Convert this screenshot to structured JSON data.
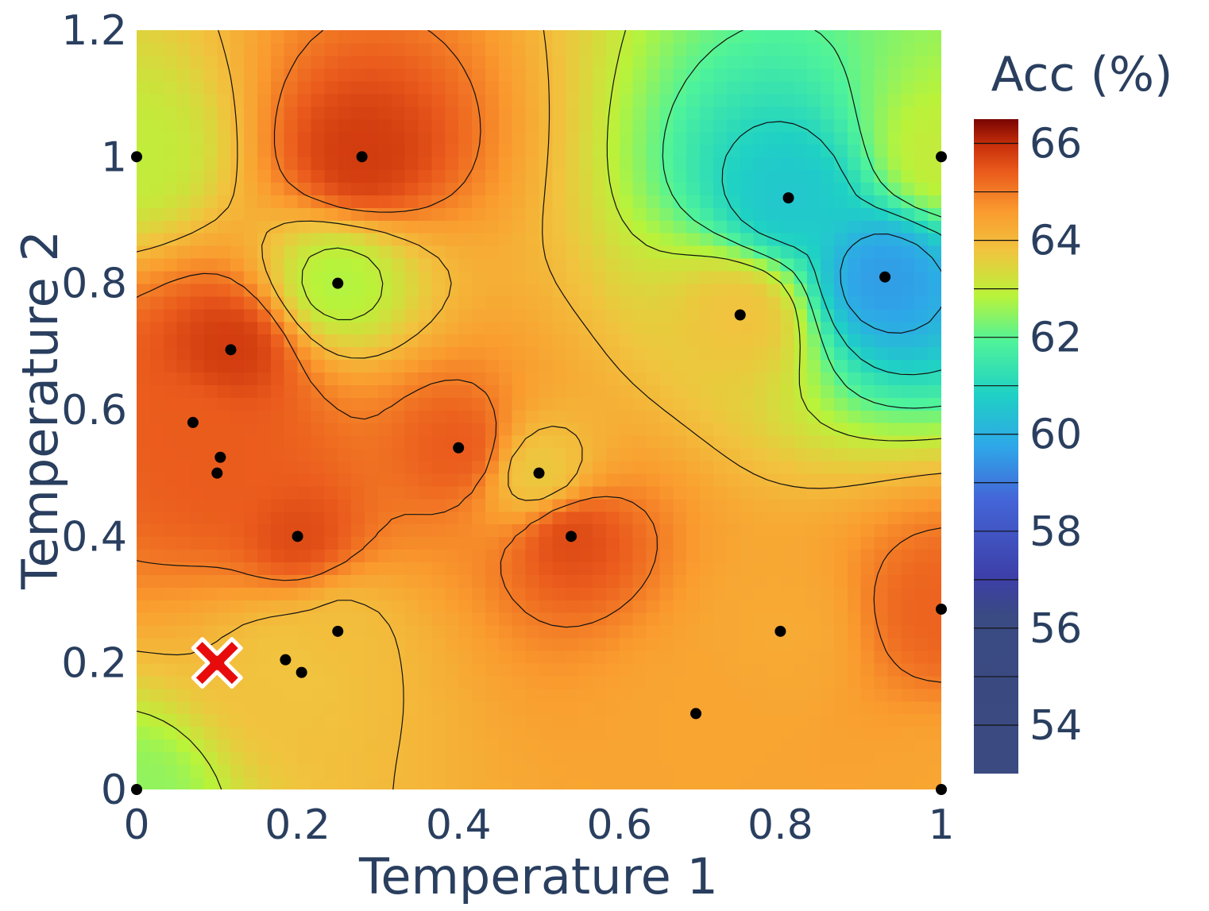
{
  "chart_data": {
    "type": "heatmap",
    "title": "",
    "xlabel": "Temperature 1",
    "ylabel": "Temperature 2",
    "xlim": [
      0,
      1
    ],
    "ylim": [
      0,
      1.2
    ],
    "x_ticks": [
      "0",
      "0.2",
      "0.4",
      "0.6",
      "0.8",
      "1"
    ],
    "x_tick_values": [
      0,
      0.2,
      0.4,
      0.6,
      0.8,
      1
    ],
    "y_ticks": [
      "0",
      "0.2",
      "0.4",
      "0.6",
      "0.8",
      "1",
      "1.2"
    ],
    "y_tick_values": [
      0,
      0.2,
      0.4,
      0.6,
      0.8,
      1,
      1.2
    ],
    "grid": false,
    "colorbar": {
      "title": "Acc (%)",
      "range": [
        53,
        66.5
      ],
      "ticks": [
        "54",
        "56",
        "58",
        "60",
        "62",
        "64",
        "66"
      ],
      "tick_values": [
        54,
        56,
        58,
        60,
        62,
        64,
        66
      ],
      "contour_levels": [
        54,
        55,
        56,
        57,
        58,
        59,
        60,
        61,
        62,
        63,
        64,
        65,
        66
      ],
      "colorscale": [
        [
          0.0,
          "#3b4a80"
        ],
        [
          0.24,
          "#3a4a82"
        ],
        [
          0.3,
          "#3d3fa8"
        ],
        [
          0.42,
          "#4466d8"
        ],
        [
          0.5,
          "#2ea7e8"
        ],
        [
          0.58,
          "#1fd1c4"
        ],
        [
          0.66,
          "#4ff39a"
        ],
        [
          0.73,
          "#b9f33a"
        ],
        [
          0.8,
          "#f1c33e"
        ],
        [
          0.86,
          "#fa9a2e"
        ],
        [
          0.92,
          "#ea5a1c"
        ],
        [
          0.96,
          "#c8300a"
        ],
        [
          1.0,
          "#7a0403"
        ]
      ]
    },
    "points": [
      {
        "x": 0.0,
        "y": 1.0,
        "acc": 63.0
      },
      {
        "x": 0.28,
        "y": 1.0,
        "acc": 65.8
      },
      {
        "x": 0.81,
        "y": 0.935,
        "acc": 60.6
      },
      {
        "x": 1.0,
        "y": 1.0,
        "acc": 63.0
      },
      {
        "x": 0.25,
        "y": 0.8,
        "acc": 62.8
      },
      {
        "x": 0.93,
        "y": 0.81,
        "acc": 59.6
      },
      {
        "x": 0.75,
        "y": 0.75,
        "acc": 63.8
      },
      {
        "x": 0.117,
        "y": 0.695,
        "acc": 65.8
      },
      {
        "x": 0.07,
        "y": 0.58,
        "acc": 65.4
      },
      {
        "x": 0.104,
        "y": 0.525,
        "acc": 65.4
      },
      {
        "x": 0.1,
        "y": 0.5,
        "acc": 65.4
      },
      {
        "x": 0.4,
        "y": 0.54,
        "acc": 65.4
      },
      {
        "x": 0.5,
        "y": 0.5,
        "acc": 63.7
      },
      {
        "x": 0.2,
        "y": 0.4,
        "acc": 65.6
      },
      {
        "x": 0.54,
        "y": 0.4,
        "acc": 65.6
      },
      {
        "x": 0.25,
        "y": 0.25,
        "acc": 63.9
      },
      {
        "x": 0.8,
        "y": 0.25,
        "acc": 64.3
      },
      {
        "x": 1.0,
        "y": 0.285,
        "acc": 65.3
      },
      {
        "x": 0.185,
        "y": 0.205,
        "acc": 63.8
      },
      {
        "x": 0.205,
        "y": 0.185,
        "acc": 63.8
      },
      {
        "x": 0.695,
        "y": 0.12,
        "acc": 64.4
      },
      {
        "x": 0.0,
        "y": 0.0,
        "acc": 62.5
      },
      {
        "x": 1.0,
        "y": 0.0,
        "acc": 64.4
      }
    ],
    "best_marker": {
      "x": 0.1,
      "y": 0.2,
      "symbol": "x",
      "color": "#e80b0b"
    }
  }
}
